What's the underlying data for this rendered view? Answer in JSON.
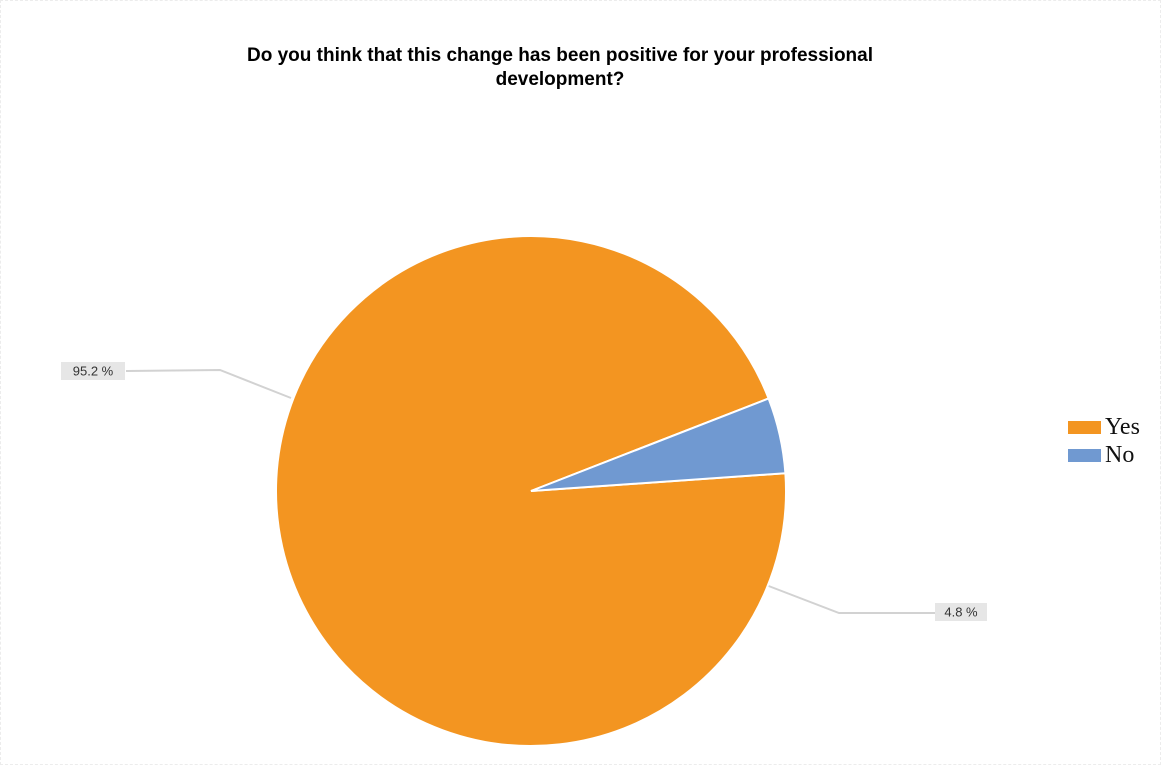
{
  "chart_data": {
    "type": "pie",
    "title": "Do you think that this change has been positive  for your professional development?",
    "title_lines": [
      "Do you think that this change has been positive  for your professional",
      "development?"
    ],
    "slices": [
      {
        "name": "Yes",
        "value": 95.2,
        "label": "95.2 %",
        "color": "#f39521"
      },
      {
        "name": "No",
        "value": 4.8,
        "label": "4.8 %",
        "color": "#7099d1"
      }
    ],
    "legend_position": "right"
  }
}
